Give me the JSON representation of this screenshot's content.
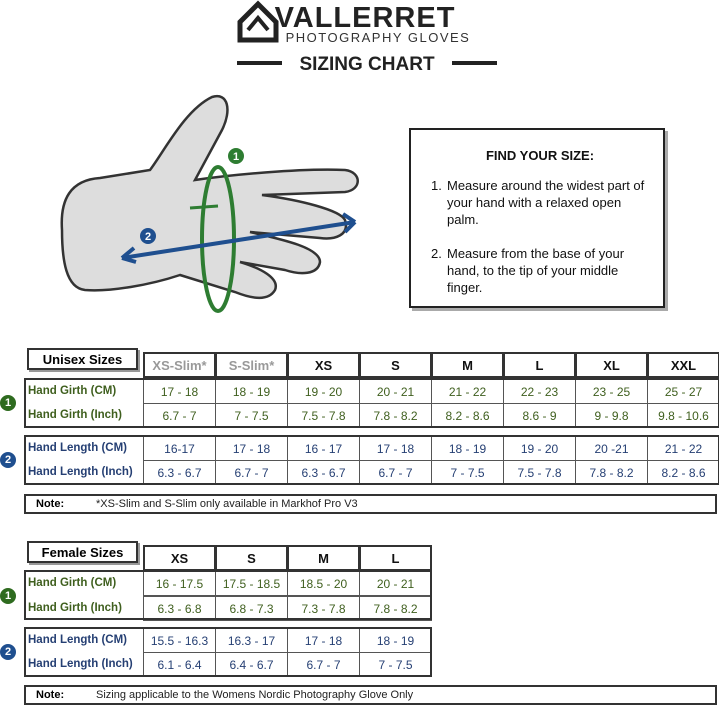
{
  "header": {
    "brand": "VALLERRET",
    "subtitle": "PHOTOGRAPHY GLOVES",
    "title": "SIZING CHART"
  },
  "diagram": {
    "markers": [
      "1",
      "2"
    ]
  },
  "instructions": {
    "heading": "FIND YOUR SIZE:",
    "steps": [
      {
        "number": "1.",
        "text": "Measure around the widest part of your hand with a relaxed open palm."
      },
      {
        "number": "2.",
        "text": "Measure from the base of your hand, to the tip of your middle finger."
      }
    ]
  },
  "unisex": {
    "label": "Unisex Sizes",
    "sizes": [
      "XS-Slim*",
      "S-Slim*",
      "XS",
      "S",
      "M",
      "L",
      "XL",
      "XXL"
    ],
    "rows": [
      {
        "label": "Hand Girth (CM)",
        "values": [
          "17 - 18",
          "18 - 19",
          "19 - 20",
          "20 - 21",
          "21 - 22",
          "22 - 23",
          "23 - 25",
          "25 - 27"
        ]
      },
      {
        "label": "Hand Girth (Inch)",
        "values": [
          "6.7 - 7",
          "7 - 7.5",
          "7.5 - 7.8",
          "7.8 - 8.2",
          "8.2 - 8.6",
          "8.6 - 9",
          "9 - 9.8",
          "9.8 - 10.6"
        ]
      },
      {
        "label": "Hand Length (CM)",
        "values": [
          "16-17",
          "17 - 18",
          "16 - 17",
          "17 - 18",
          "18 - 19",
          "19 - 20",
          "20 -21",
          "21 - 22"
        ]
      },
      {
        "label": "Hand Length (Inch)",
        "values": [
          "6.3 - 6.7",
          "6.7 - 7",
          "6.3 - 6.7",
          "6.7 - 7",
          "7 - 7.5",
          "7.5 - 7.8",
          "7.8 - 8.2",
          "8.2 - 8.6"
        ]
      }
    ],
    "note": {
      "label": "Note:",
      "text": "*XS-Slim and S-Slim only available in Markhof Pro V3"
    }
  },
  "female": {
    "label": "Female Sizes",
    "sizes": [
      "XS",
      "S",
      "M",
      "L"
    ],
    "rows": [
      {
        "label": "Hand Girth (CM)",
        "values": [
          "16 - 17.5",
          "17.5 - 18.5",
          "18.5 - 20",
          "20 - 21"
        ]
      },
      {
        "label": "Hand Girth (Inch)",
        "values": [
          "6.3 - 6.8",
          "6.8 - 7.3",
          "7.3 - 7.8",
          "7.8 - 8.2"
        ]
      },
      {
        "label": "Hand Length (CM)",
        "values": [
          "15.5 - 16.3",
          "16.3 - 17",
          "17 - 18",
          "18 - 19"
        ]
      },
      {
        "label": "Hand Length (Inch)",
        "values": [
          "6.1 - 6.4",
          "6.4 - 6.7",
          "6.7 - 7",
          "7 - 7.5"
        ]
      }
    ],
    "note": {
      "label": "Note:",
      "text": "Sizing applicable to the Womens Nordic Photography Glove Only"
    }
  }
}
